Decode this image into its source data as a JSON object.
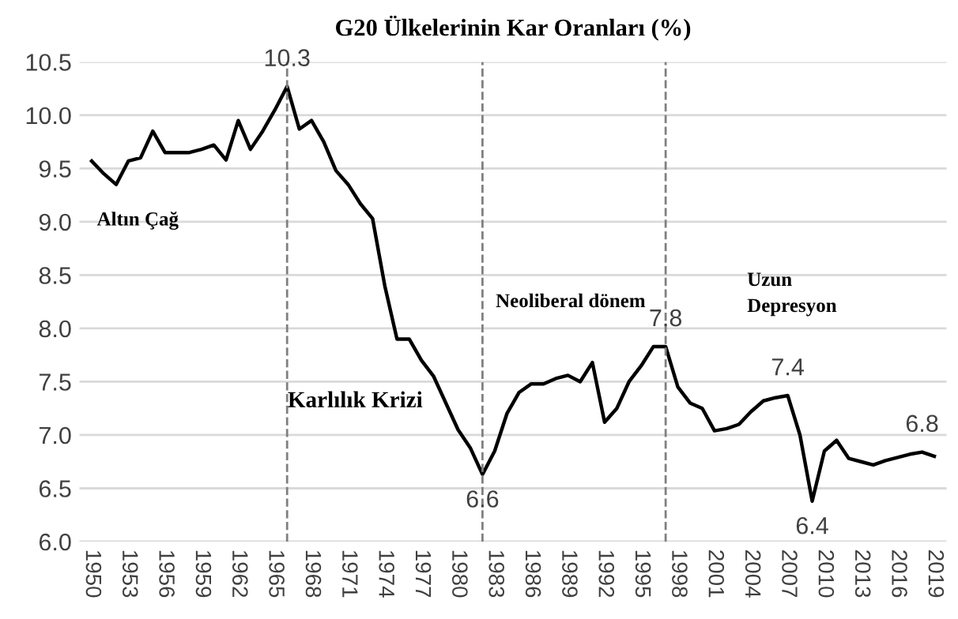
{
  "chart_data": {
    "type": "line",
    "title": "G20 Ülkelerinin Kar Oranları (%)",
    "x": [
      1950,
      1951,
      1952,
      1953,
      1954,
      1955,
      1956,
      1957,
      1958,
      1959,
      1960,
      1961,
      1962,
      1963,
      1964,
      1965,
      1966,
      1967,
      1968,
      1969,
      1970,
      1971,
      1972,
      1973,
      1974,
      1975,
      1976,
      1977,
      1978,
      1979,
      1980,
      1981,
      1982,
      1983,
      1984,
      1985,
      1986,
      1987,
      1988,
      1989,
      1990,
      1991,
      1992,
      1993,
      1994,
      1995,
      1996,
      1997,
      1998,
      1999,
      2000,
      2001,
      2002,
      2003,
      2004,
      2005,
      2006,
      2007,
      2008,
      2009,
      2010,
      2011,
      2012,
      2013,
      2014,
      2015,
      2016,
      2017,
      2018,
      2019
    ],
    "series": [
      {
        "color": "#000000",
        "values": [
          9.57,
          9.45,
          9.35,
          9.57,
          9.6,
          9.85,
          9.65,
          9.65,
          9.65,
          9.68,
          9.72,
          9.58,
          9.95,
          9.68,
          9.85,
          10.05,
          10.27,
          9.87,
          9.95,
          9.75,
          9.48,
          9.35,
          9.17,
          9.03,
          8.4,
          7.9,
          7.9,
          7.7,
          7.55,
          7.3,
          7.05,
          6.88,
          6.63,
          6.85,
          7.2,
          7.4,
          7.48,
          7.48,
          7.53,
          7.56,
          7.5,
          7.68,
          7.12,
          7.25,
          7.5,
          7.65,
          7.83,
          7.83,
          7.45,
          7.3,
          7.25,
          7.04,
          7.06,
          7.1,
          7.22,
          7.32,
          7.35,
          7.37,
          7.0,
          6.38,
          6.85,
          6.95,
          6.78,
          6.75,
          6.72,
          6.76,
          6.79,
          6.82,
          6.84,
          6.8
        ],
        "value_labels": [
          null,
          null,
          null,
          null,
          null,
          null,
          null,
          null,
          null,
          null,
          null,
          null,
          null,
          null,
          null,
          null,
          "10.3",
          null,
          null,
          null,
          null,
          null,
          null,
          null,
          null,
          null,
          null,
          null,
          null,
          null,
          null,
          null,
          "6.6",
          null,
          null,
          null,
          null,
          null,
          null,
          null,
          null,
          null,
          null,
          null,
          null,
          null,
          null,
          "7.8",
          null,
          null,
          null,
          null,
          null,
          null,
          null,
          null,
          null,
          "7.4",
          null,
          "6.4",
          null,
          null,
          null,
          null,
          null,
          null,
          null,
          null,
          "6.8",
          null
        ]
      }
    ],
    "xlim": [
      1949,
      2020
    ],
    "xticks": [
      1950,
      1953,
      1956,
      1959,
      1962,
      1965,
      1968,
      1971,
      1974,
      1977,
      1980,
      1983,
      1986,
      1989,
      1992,
      1995,
      1998,
      2001,
      2004,
      2007,
      2010,
      2013,
      2016,
      2019
    ],
    "ylim": [
      6.0,
      10.5
    ],
    "yticks": [
      {
        "value": 6.0,
        "label": "6.0"
      },
      {
        "value": 6.5,
        "label": "6.5"
      },
      {
        "value": 7.0,
        "label": "7.0"
      },
      {
        "value": 7.5,
        "label": "7.5"
      },
      {
        "value": 8.0,
        "label": "8.0"
      },
      {
        "value": 8.5,
        "label": "8.5"
      },
      {
        "value": 9.0,
        "label": "9.0"
      },
      {
        "value": 9.5,
        "label": "9.5"
      },
      {
        "value": 10.0,
        "label": "10.0"
      },
      {
        "value": 10.5,
        "label": "10.5"
      }
    ],
    "grid": "y",
    "line_style": "solid",
    "marker": "none",
    "legend": false,
    "ref_lines": [
      {
        "axis": "x",
        "value": 1966,
        "color": "#808080",
        "line_style": "dashed"
      },
      {
        "axis": "x",
        "value": 1982,
        "color": "#808080",
        "line_style": "dashed"
      },
      {
        "axis": "x",
        "value": 1997,
        "color": "#808080",
        "line_style": "dashed"
      }
    ],
    "annotations": [
      "Altın Çağ",
      "Karlılık Krizi",
      "Neoliberal dönem",
      "Uzun\nDepresyon"
    ]
  }
}
